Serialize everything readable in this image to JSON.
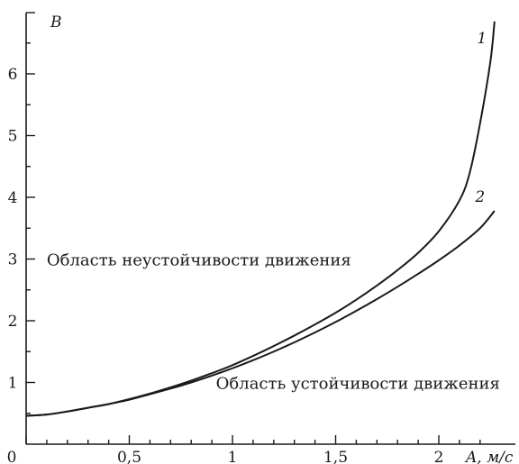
{
  "chart_data": {
    "type": "line",
    "title": "",
    "xlabel": "A, м/c",
    "ylabel": "B",
    "xlim": [
      0,
      2.5
    ],
    "ylim": [
      0,
      6.9
    ],
    "x_ticks": [
      {
        "value": 0,
        "label": "0"
      },
      {
        "value": 0.5,
        "label": "0,5"
      },
      {
        "value": 1,
        "label": "1"
      },
      {
        "value": 1.5,
        "label": "1,5"
      },
      {
        "value": 2,
        "label": "2"
      }
    ],
    "y_ticks": [
      {
        "value": 1,
        "label": "1"
      },
      {
        "value": 2,
        "label": "2"
      },
      {
        "value": 3,
        "label": "3"
      },
      {
        "value": 4,
        "label": "4"
      },
      {
        "value": 5,
        "label": "5"
      },
      {
        "value": 6,
        "label": "6"
      }
    ],
    "series": [
      {
        "name": "1",
        "points": [
          [
            0,
            0.46
          ],
          [
            0.1,
            0.48
          ],
          [
            0.2,
            0.53
          ],
          [
            0.3,
            0.59
          ],
          [
            0.4,
            0.65
          ],
          [
            0.5,
            0.73
          ],
          [
            0.6,
            0.82
          ],
          [
            0.7,
            0.92
          ],
          [
            0.8,
            1.03
          ],
          [
            0.9,
            1.15
          ],
          [
            1.0,
            1.28
          ],
          [
            1.1,
            1.43
          ],
          [
            1.2,
            1.59
          ],
          [
            1.3,
            1.76
          ],
          [
            1.4,
            1.94
          ],
          [
            1.5,
            2.13
          ],
          [
            1.6,
            2.34
          ],
          [
            1.7,
            2.57
          ],
          [
            1.8,
            2.82
          ],
          [
            1.9,
            3.1
          ],
          [
            2.0,
            3.45
          ],
          [
            2.1,
            3.95
          ],
          [
            2.15,
            4.4
          ],
          [
            2.2,
            5.2
          ],
          [
            2.25,
            6.2
          ],
          [
            2.27,
            6.85
          ]
        ]
      },
      {
        "name": "2",
        "points": [
          [
            0,
            0.46
          ],
          [
            0.1,
            0.48
          ],
          [
            0.2,
            0.53
          ],
          [
            0.3,
            0.59
          ],
          [
            0.4,
            0.65
          ],
          [
            0.5,
            0.72
          ],
          [
            0.6,
            0.81
          ],
          [
            0.7,
            0.9
          ],
          [
            0.8,
            1.0
          ],
          [
            0.9,
            1.11
          ],
          [
            1.0,
            1.23
          ],
          [
            1.1,
            1.36
          ],
          [
            1.2,
            1.5
          ],
          [
            1.3,
            1.65
          ],
          [
            1.4,
            1.81
          ],
          [
            1.5,
            1.98
          ],
          [
            1.6,
            2.16
          ],
          [
            1.7,
            2.35
          ],
          [
            1.8,
            2.55
          ],
          [
            1.9,
            2.76
          ],
          [
            2.0,
            2.98
          ],
          [
            2.1,
            3.22
          ],
          [
            2.2,
            3.5
          ],
          [
            2.27,
            3.78
          ]
        ]
      }
    ],
    "annotations": [
      {
        "text": "Область неустойчивости движения",
        "x": 0.1,
        "y": 3.0
      },
      {
        "text": "Область устойчивости движения",
        "x": 0.92,
        "y": 1.0
      }
    ],
    "grid": false,
    "legend": "none"
  }
}
